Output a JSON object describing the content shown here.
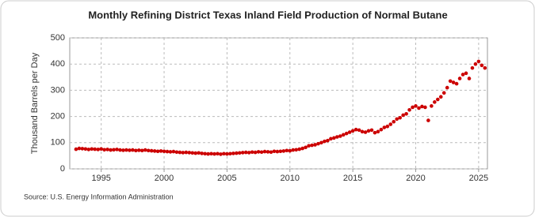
{
  "chart_data": {
    "type": "scatter",
    "title": "Monthly Refining District Texas Inland Field Production of Normal Butane",
    "y_label": "Thousand Barrels per Day",
    "source": "Source: U.S. Energy Information Administration",
    "color": "#cc0000",
    "grid": true,
    "xlim": [
      1992.5,
      2025.7
    ],
    "xticks": [
      1995,
      2000,
      2005,
      2010,
      2015,
      2020,
      2025
    ],
    "ylim": [
      0,
      500
    ],
    "yticks": [
      0,
      100,
      200,
      300,
      400,
      500
    ],
    "x": [
      1993,
      1993.25,
      1993.5,
      1993.75,
      1994,
      1994.25,
      1994.5,
      1994.75,
      1995,
      1995.25,
      1995.5,
      1995.75,
      1996,
      1996.25,
      1996.5,
      1996.75,
      1997,
      1997.25,
      1997.5,
      1997.75,
      1998,
      1998.25,
      1998.5,
      1998.75,
      1999,
      1999.25,
      1999.5,
      1999.75,
      2000,
      2000.25,
      2000.5,
      2000.75,
      2001,
      2001.25,
      2001.5,
      2001.75,
      2002,
      2002.25,
      2002.5,
      2002.75,
      2003,
      2003.25,
      2003.5,
      2003.75,
      2004,
      2004.25,
      2004.5,
      2004.75,
      2005,
      2005.25,
      2005.5,
      2005.75,
      2006,
      2006.25,
      2006.5,
      2006.75,
      2007,
      2007.25,
      2007.5,
      2007.75,
      2008,
      2008.25,
      2008.5,
      2008.75,
      2009,
      2009.25,
      2009.5,
      2009.75,
      2010,
      2010.25,
      2010.5,
      2010.75,
      2011,
      2011.25,
      2011.5,
      2011.75,
      2012,
      2012.25,
      2012.5,
      2012.75,
      2013,
      2013.25,
      2013.5,
      2013.75,
      2014,
      2014.25,
      2014.5,
      2014.75,
      2015,
      2015.25,
      2015.5,
      2015.75,
      2016,
      2016.25,
      2016.5,
      2016.75,
      2017,
      2017.25,
      2017.5,
      2017.75,
      2018,
      2018.25,
      2018.5,
      2018.75,
      2019,
      2019.25,
      2019.5,
      2019.75,
      2020,
      2020.25,
      2020.5,
      2020.75,
      2021,
      2021.25,
      2021.5,
      2021.75,
      2022,
      2022.25,
      2022.5,
      2022.75,
      2023,
      2023.25,
      2023.5,
      2023.75,
      2024,
      2024.25,
      2024.5,
      2024.75,
      2025,
      2025.25,
      2025.5
    ],
    "values": [
      75,
      78,
      77,
      76,
      74,
      76,
      75,
      74,
      76,
      73,
      74,
      72,
      73,
      74,
      72,
      71,
      72,
      71,
      72,
      70,
      71,
      70,
      72,
      70,
      69,
      68,
      67,
      68,
      67,
      66,
      65,
      66,
      64,
      63,
      62,
      63,
      62,
      61,
      60,
      61,
      59,
      58,
      57,
      58,
      57,
      58,
      56,
      58,
      57,
      58,
      59,
      60,
      61,
      62,
      63,
      62,
      64,
      63,
      65,
      64,
      66,
      65,
      64,
      67,
      66,
      67,
      68,
      70,
      69,
      72,
      73,
      75,
      78,
      82,
      88,
      90,
      92,
      96,
      100,
      105,
      108,
      115,
      118,
      122,
      125,
      130,
      135,
      140,
      145,
      150,
      148,
      142,
      140,
      145,
      148,
      138,
      142,
      150,
      158,
      162,
      170,
      180,
      190,
      195,
      205,
      210,
      225,
      235,
      240,
      232,
      238,
      235,
      185,
      240,
      255,
      265,
      275,
      290,
      310,
      335,
      330,
      325,
      345,
      360,
      365,
      345,
      385,
      400,
      410,
      395,
      385
    ]
  }
}
